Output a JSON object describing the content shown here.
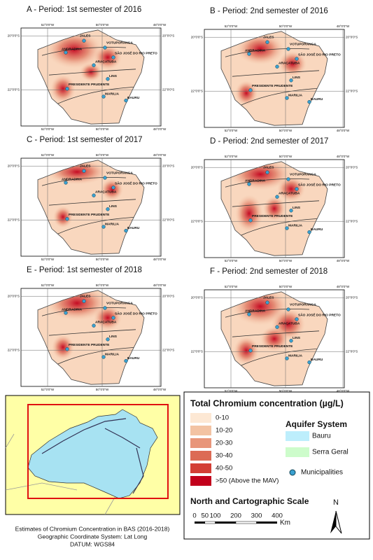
{
  "panels": [
    {
      "title": "A - Period: 1st semester of 2016"
    },
    {
      "title": "B - Period: 2nd semester of 2016"
    },
    {
      "title": "C - Period: 1st semester of 2017"
    },
    {
      "title": "D - Period: 2nd semester of 2017"
    },
    {
      "title": "E - Period: 1st semester of 2018"
    },
    {
      "title": "F - Period: 2nd semester of 2018"
    }
  ],
  "lon_labels": [
    "52°0'0\"W",
    "50°0'0\"W",
    "48°0'0\"W"
  ],
  "lat_labels": [
    "20°0'0\"S",
    "22°0'0\"S"
  ],
  "cities": [
    "JALES",
    "VOTUPORANGA",
    "ANDRADINA",
    "SÃO JOSÉ DO RIO PRETO",
    "ARAÇATUBA",
    "LINS",
    "PRESIDENTE PRUDENTE",
    "MARILIA",
    "BAURU"
  ],
  "legend": {
    "title": "Total Chromium concentration (µg/L)",
    "classes": [
      {
        "label": "0-10",
        "color": "#fde8d4"
      },
      {
        "label": "10-20",
        "color": "#f3c3a3"
      },
      {
        "label": "20-30",
        "color": "#e8967a"
      },
      {
        "label": "30-40",
        "color": "#dc6b55"
      },
      {
        "label": "40-50",
        "color": "#d33e35"
      },
      {
        "label": ">50 (Above the MAV)",
        "color": "#c2001b"
      }
    ],
    "aquifer_title": "Aquifer System",
    "aquifers": [
      {
        "label": "Bauru",
        "color": "#bdeefc"
      },
      {
        "label": "Serra Geral",
        "color": "#cdfccb"
      }
    ],
    "municipalities": "Municipalities",
    "scale_title": "North and Cartographic Scale",
    "scale": [
      0,
      50,
      100,
      200,
      300,
      400
    ],
    "scale_unit": "Km",
    "north": "N"
  },
  "footer": [
    "Estimates of Chromium Concentration in BAS (2016-2018)",
    "Geographic Coordinate System: Lat Long",
    "DATUM:  WGS84"
  ]
}
